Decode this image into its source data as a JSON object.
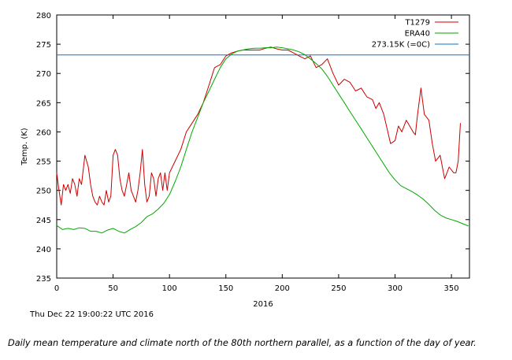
{
  "caption": "Daily mean temperature and climate north of the 80th northern parallel, as a function of the day of year.",
  "timestamp": "Thu Dec 22 19:00:22 UTC 2016",
  "chart_data": {
    "type": "line",
    "title": "",
    "xlabel": "2016",
    "ylabel": "Temp. (K)",
    "xlim": [
      0,
      366
    ],
    "ylim": [
      235,
      280
    ],
    "xticks": [
      0,
      50,
      100,
      150,
      200,
      250,
      300,
      350
    ],
    "yticks": [
      235,
      240,
      245,
      250,
      255,
      260,
      265,
      270,
      275,
      280
    ],
    "legend_position": "top-right",
    "grid": false,
    "series": [
      {
        "name": "T1279",
        "color": "#cc0000",
        "x": [
          0,
          2,
          4,
          6,
          8,
          10,
          12,
          14,
          16,
          18,
          20,
          22,
          25,
          28,
          30,
          32,
          34,
          36,
          38,
          40,
          42,
          44,
          46,
          48,
          50,
          52,
          54,
          56,
          58,
          60,
          62,
          64,
          66,
          68,
          70,
          72,
          74,
          76,
          78,
          80,
          82,
          84,
          86,
          88,
          90,
          92,
          94,
          96,
          98,
          100,
          105,
          110,
          115,
          120,
          125,
          130,
          135,
          140,
          145,
          150,
          155,
          160,
          165,
          170,
          175,
          180,
          185,
          190,
          195,
          200,
          205,
          210,
          215,
          220,
          225,
          230,
          235,
          240,
          245,
          250,
          255,
          260,
          265,
          270,
          275,
          280,
          283,
          286,
          290,
          293,
          296,
          300,
          303,
          306,
          310,
          313,
          316,
          318,
          320,
          323,
          326,
          330,
          333,
          336,
          340,
          342,
          344,
          346,
          348,
          350,
          352,
          354,
          356,
          358
        ],
        "values": [
          253,
          250,
          247.5,
          251,
          250,
          251,
          249.5,
          252,
          251,
          249,
          252,
          251,
          256,
          254,
          251,
          249,
          248,
          247.5,
          249,
          248,
          247.5,
          250,
          248,
          249,
          256,
          257,
          256,
          252,
          250,
          249,
          251,
          253,
          250,
          249,
          248,
          250,
          253,
          257,
          251,
          248,
          249,
          253,
          252,
          249,
          252,
          253,
          250,
          253,
          250,
          253,
          255,
          257,
          260,
          261.5,
          263,
          265,
          268,
          271,
          271.5,
          273,
          273.5,
          273.8,
          274,
          274,
          274,
          274,
          274.3,
          274.5,
          274.2,
          274,
          274,
          273.5,
          273,
          272.5,
          273,
          271,
          271.5,
          272.5,
          270,
          268,
          269,
          268.5,
          267,
          267.5,
          266,
          265.5,
          264,
          265,
          263,
          260.5,
          258,
          258.5,
          261,
          260,
          262,
          261,
          260,
          259.5,
          263,
          267.5,
          263,
          262,
          258,
          255,
          256,
          254,
          252,
          253,
          254,
          253.5,
          253,
          253,
          255,
          261.5
        ]
      },
      {
        "name": "ERA40",
        "color": "#00aa00",
        "x": [
          0,
          5,
          10,
          15,
          20,
          25,
          30,
          35,
          40,
          45,
          50,
          55,
          60,
          65,
          70,
          75,
          80,
          85,
          90,
          95,
          100,
          105,
          110,
          115,
          120,
          125,
          130,
          135,
          140,
          145,
          150,
          155,
          160,
          165,
          170,
          175,
          180,
          185,
          190,
          195,
          200,
          205,
          210,
          215,
          220,
          225,
          230,
          235,
          240,
          245,
          250,
          255,
          260,
          265,
          270,
          275,
          280,
          285,
          290,
          295,
          300,
          305,
          310,
          315,
          320,
          325,
          330,
          335,
          340,
          345,
          350,
          355,
          360,
          365
        ],
        "values": [
          244,
          243.3,
          243.5,
          243.3,
          243.6,
          243.5,
          243,
          243,
          242.7,
          243.2,
          243.5,
          243,
          242.7,
          243.3,
          243.8,
          244.5,
          245.5,
          246,
          246.8,
          247.8,
          249.3,
          251.5,
          254,
          257,
          260,
          262.5,
          265,
          267,
          269,
          271,
          272.5,
          273.3,
          273.8,
          274,
          274.2,
          274.3,
          274.3,
          274.4,
          274.4,
          274.5,
          274.4,
          274.2,
          274,
          273.7,
          273.2,
          272.5,
          271.7,
          270.8,
          269.5,
          268,
          266.5,
          265,
          263.5,
          262,
          260.5,
          259,
          257.5,
          256,
          254.5,
          253,
          251.8,
          250.8,
          250.3,
          249.8,
          249.2,
          248.5,
          247.6,
          246.6,
          245.8,
          245.3,
          245,
          244.7,
          244.3,
          243.9
        ]
      },
      {
        "name": "273.15K (=0C)",
        "color": "#0077cc",
        "x": [
          0,
          366
        ],
        "values": [
          273.15,
          273.15
        ]
      }
    ]
  }
}
